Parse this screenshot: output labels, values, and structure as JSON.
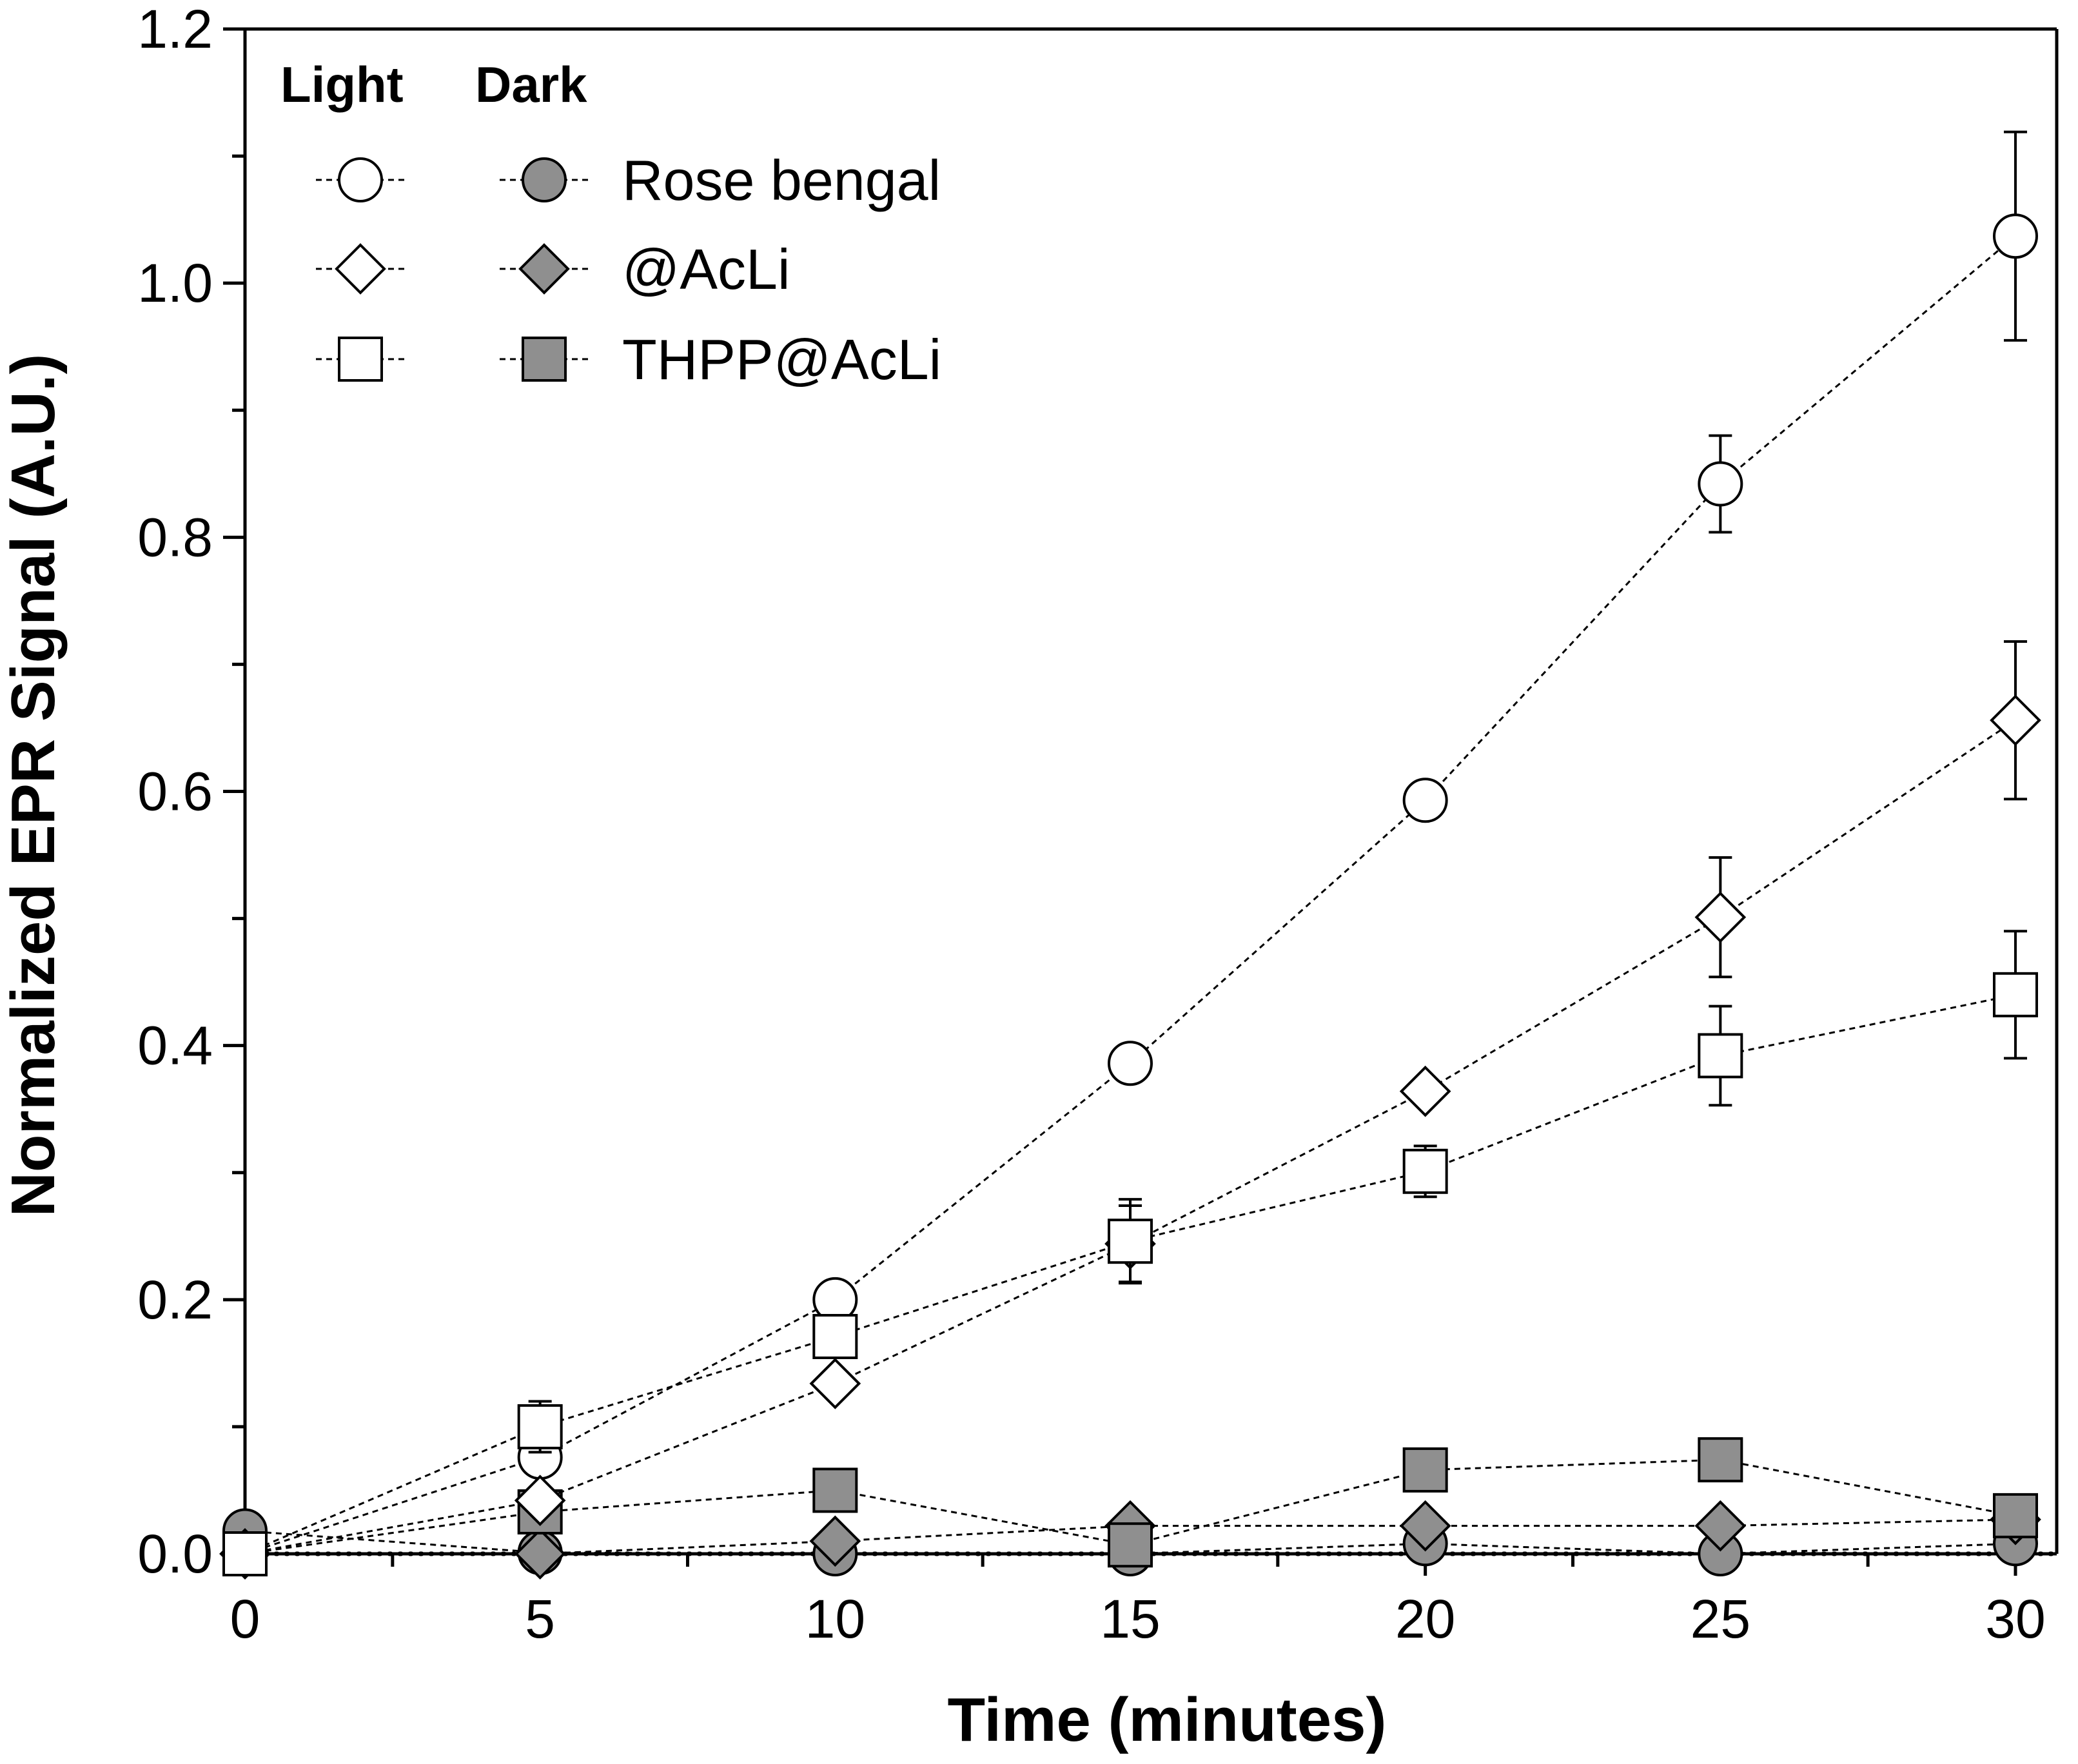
{
  "chart_data": {
    "type": "line",
    "title": "",
    "xlabel": "Time (minutes)",
    "ylabel": "Normalized EPR Signal (A.U.)",
    "xlim": [
      0,
      30.5
    ],
    "ylim": [
      0,
      1.2
    ],
    "x_ticks": [
      "0",
      "5",
      "10",
      "15",
      "20",
      "25",
      "30"
    ],
    "y_ticks": [
      "0.0",
      "0.2",
      "0.4",
      "0.6",
      "0.8",
      "1.0",
      "1.2"
    ],
    "x": [
      0,
      5,
      10,
      15,
      20,
      25,
      30
    ],
    "grid": false,
    "legend_position": "top-left",
    "legend_headers": {
      "light": "Light",
      "dark": "Dark"
    },
    "series": [
      {
        "name": "Rose bengal",
        "condition": "Light",
        "marker": "circle",
        "filled": false,
        "values": [
          0.0,
          0.076,
          0.2,
          0.386,
          0.593,
          0.842,
          1.037
        ],
        "errors": [
          0,
          0,
          0,
          0,
          0,
          0.038,
          0.082
        ]
      },
      {
        "name": "@AcLi",
        "condition": "Light",
        "marker": "diamond",
        "filled": false,
        "values": [
          0.0,
          0.042,
          0.134,
          0.244,
          0.364,
          0.501,
          0.656
        ],
        "errors": [
          0,
          0,
          0,
          0.03,
          0,
          0.047,
          0.062
        ]
      },
      {
        "name": "THPP@AcLi",
        "condition": "Light",
        "marker": "square",
        "filled": false,
        "values": [
          0.0,
          0.1,
          0.171,
          0.246,
          0.301,
          0.392,
          0.44
        ],
        "errors": [
          0,
          0.02,
          0,
          0.033,
          0.02,
          0.039,
          0.05
        ]
      },
      {
        "name": "Rose bengal",
        "condition": "Dark",
        "marker": "circle",
        "filled": true,
        "values": [
          0.018,
          0.001,
          0.0,
          0.0,
          0.008,
          0.0,
          0.008
        ],
        "errors": [
          0,
          0,
          0,
          0,
          0,
          0,
          0
        ]
      },
      {
        "name": "@AcLi",
        "condition": "Dark",
        "marker": "diamond",
        "filled": true,
        "values": [
          0.0,
          0.0,
          0.01,
          0.022,
          0.022,
          0.022,
          0.027
        ],
        "errors": [
          0,
          0,
          0,
          0,
          0,
          0,
          0
        ]
      },
      {
        "name": "THPP@AcLi",
        "condition": "Dark",
        "marker": "square",
        "filled": true,
        "values": [
          0.0,
          0.033,
          0.05,
          0.007,
          0.066,
          0.074,
          0.03
        ],
        "errors": [
          0,
          0,
          0,
          0,
          0,
          0,
          0
        ]
      }
    ],
    "legend_rows": [
      {
        "label": "Rose bengal",
        "marker": "circle"
      },
      {
        "label": "@AcLi",
        "marker": "diamond"
      },
      {
        "label": "THPP@AcLi",
        "marker": "square"
      }
    ],
    "colors": {
      "dark_fill": "#8f8f8f",
      "light_fill": "#ffffff",
      "stroke": "#000000"
    }
  }
}
